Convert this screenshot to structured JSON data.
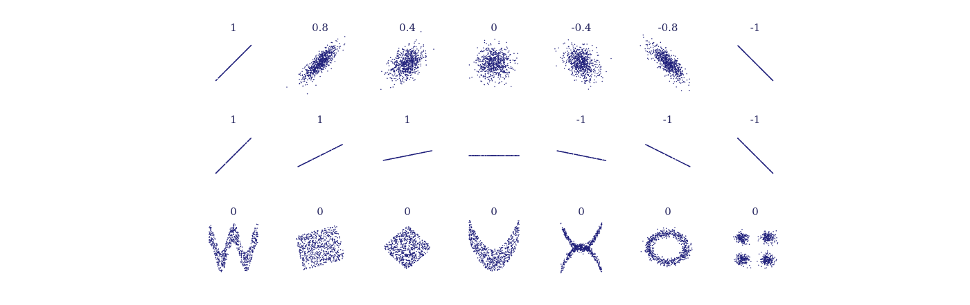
{
  "chart_data": [
    {
      "type": "scatter",
      "rows": [
        {
          "panels": [
            {
              "label": "1",
              "kind": "linear",
              "correlation": 1,
              "slope": 1
            },
            {
              "label": "0.8",
              "kind": "gaussian",
              "correlation": 0.8
            },
            {
              "label": "0.4",
              "kind": "gaussian",
              "correlation": 0.4
            },
            {
              "label": "0",
              "kind": "gaussian",
              "correlation": 0
            },
            {
              "label": "-0.4",
              "kind": "gaussian",
              "correlation": -0.4
            },
            {
              "label": "-0.8",
              "kind": "gaussian",
              "correlation": -0.8
            },
            {
              "label": "-1",
              "kind": "linear",
              "correlation": -1,
              "slope": -1
            }
          ]
        },
        {
          "panels": [
            {
              "label": "1",
              "kind": "linear",
              "correlation": 1,
              "slope": 1
            },
            {
              "label": "1",
              "kind": "linear",
              "correlation": 1,
              "slope": 0.5
            },
            {
              "label": "1",
              "kind": "linear",
              "correlation": 1,
              "slope": 0.2
            },
            {
              "label": "",
              "kind": "linear",
              "correlation": null,
              "slope": 0
            },
            {
              "label": "-1",
              "kind": "linear",
              "correlation": -1,
              "slope": -0.2
            },
            {
              "label": "-1",
              "kind": "linear",
              "correlation": -1,
              "slope": -0.5
            },
            {
              "label": "-1",
              "kind": "linear",
              "correlation": -1,
              "slope": -1
            }
          ]
        },
        {
          "panels": [
            {
              "label": "0",
              "kind": "wave",
              "correlation": 0
            },
            {
              "label": "0",
              "kind": "rotated-square",
              "correlation": 0
            },
            {
              "label": "0",
              "kind": "diamond",
              "correlation": 0
            },
            {
              "label": "0",
              "kind": "parabola",
              "correlation": 0
            },
            {
              "label": "0",
              "kind": "x-shape",
              "correlation": 0
            },
            {
              "label": "0",
              "kind": "ring",
              "correlation": 0
            },
            {
              "label": "0",
              "kind": "four-clusters",
              "correlation": 0
            }
          ]
        }
      ],
      "point_color": "#1f1f7a",
      "background": "#ffffff"
    }
  ]
}
